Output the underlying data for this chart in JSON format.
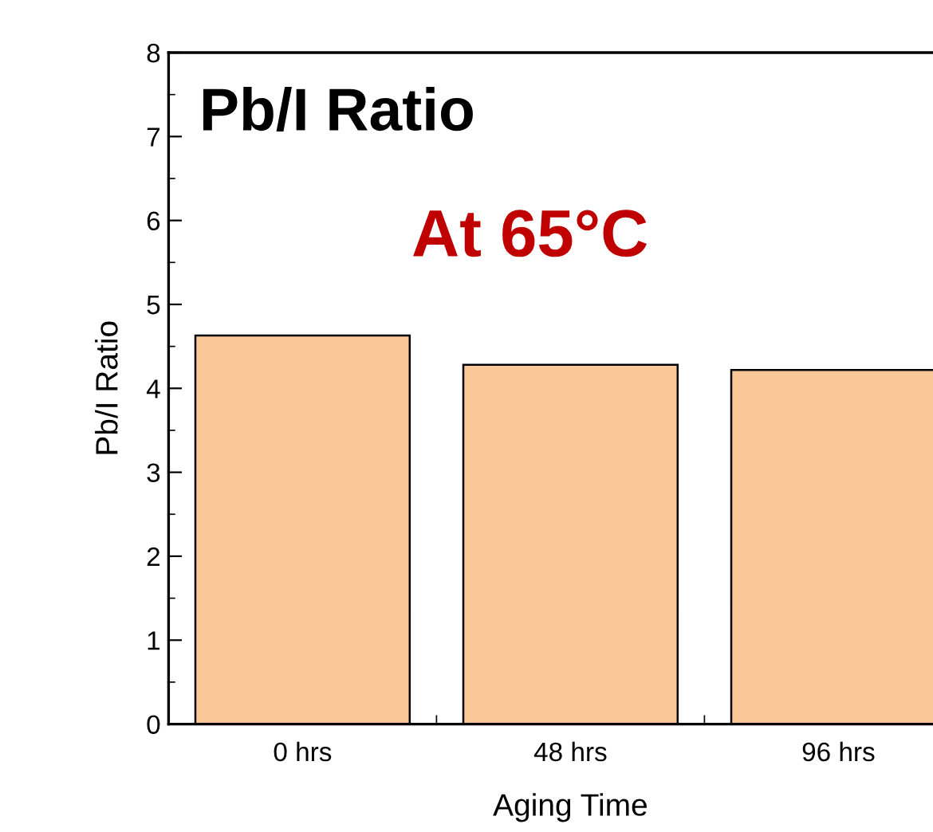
{
  "chart_data": {
    "type": "bar",
    "title": "Pb/I Ratio",
    "annotations": [
      "At 65°C"
    ],
    "xlabel": "Aging Time",
    "ylabel": "Pb/I Ratio",
    "categories": [
      "0 hrs",
      "48 hrs",
      "96 hrs"
    ],
    "values": [
      4.63,
      4.28,
      4.22
    ],
    "color": "#fac898",
    "ylim": [
      0,
      8
    ],
    "yticks": [
      0,
      1,
      2,
      3,
      4,
      5,
      6,
      7,
      8
    ],
    "grid": false
  }
}
